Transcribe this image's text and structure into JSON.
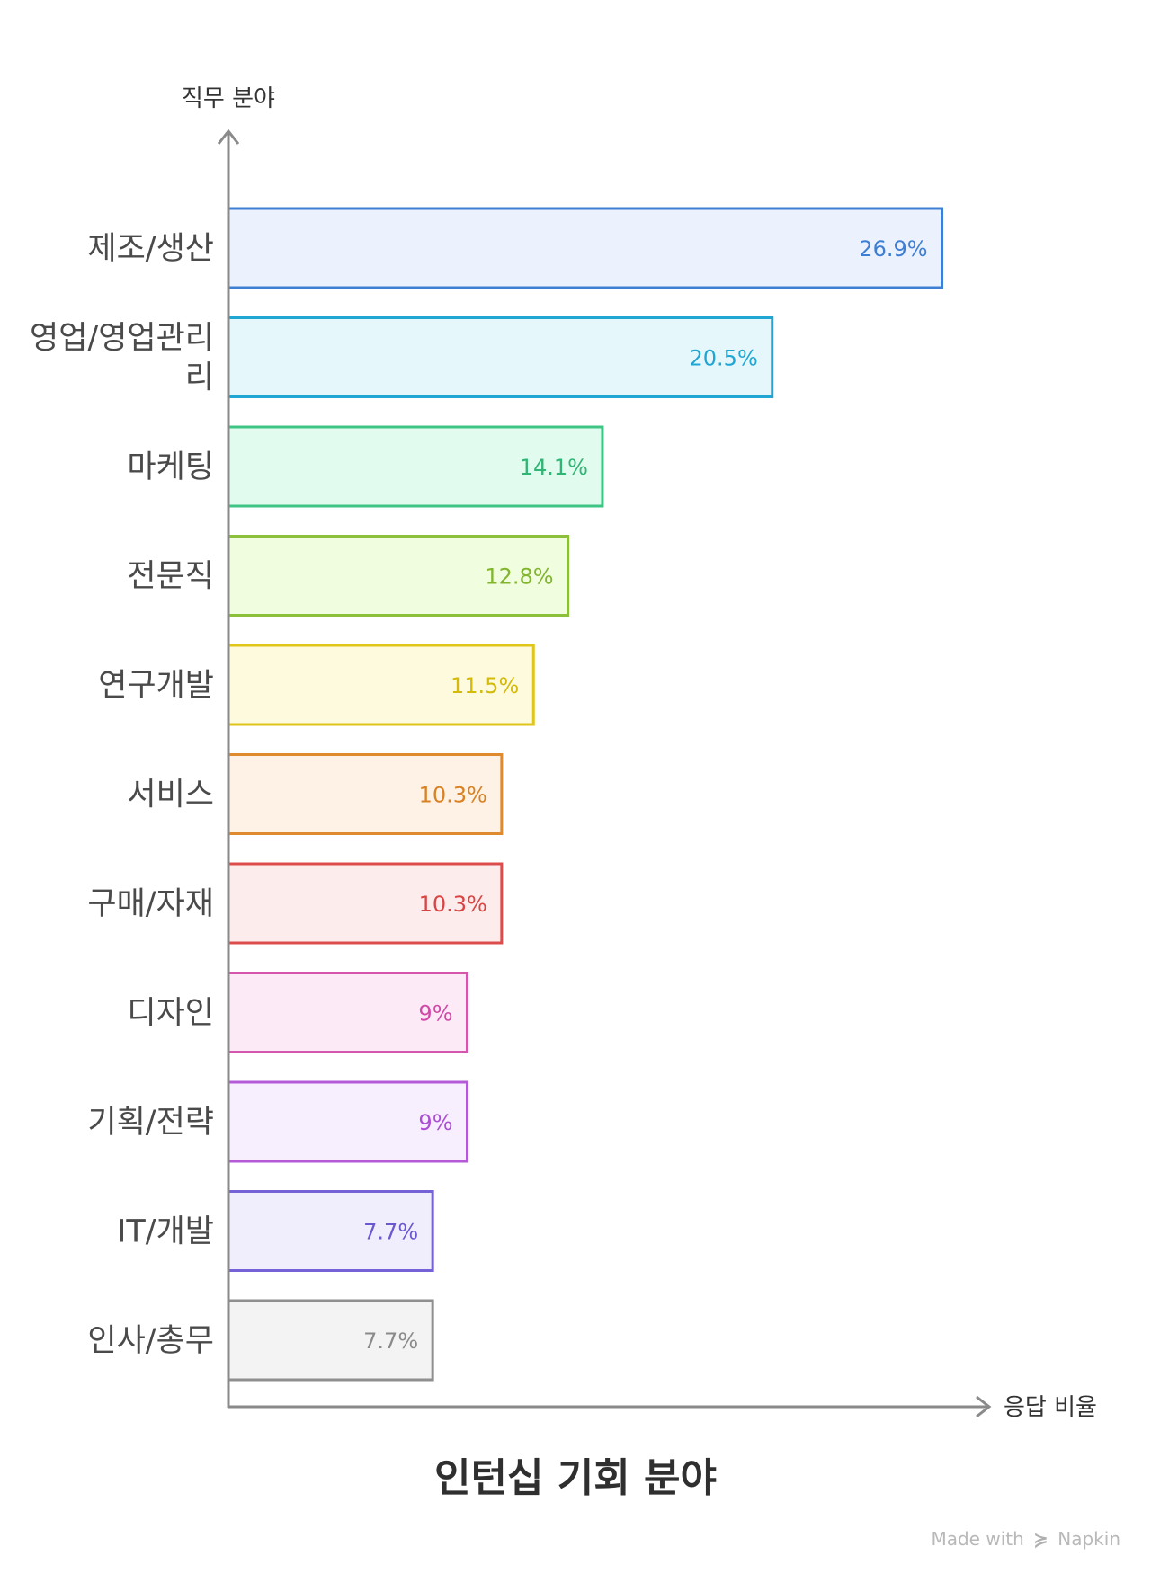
{
  "chart_data": {
    "type": "bar",
    "orientation": "horizontal",
    "title": "인턴십 기회 분야",
    "ylabel": "직무 분야",
    "xlabel": "응답 비율",
    "xlim": [
      0,
      30
    ],
    "grid": false,
    "legend": "none",
    "categories": [
      "제조/생산",
      "영업/영업관리",
      "마케팅",
      "전문직",
      "연구개발",
      "서비스",
      "구매/자재",
      "디자인",
      "기획/전략",
      "IT/개발",
      "인사/총무"
    ],
    "category_lines": [
      [
        "제조/생산"
      ],
      [
        "영업/영업관리",
        "리"
      ],
      [
        "마케팅"
      ],
      [
        "전문직"
      ],
      [
        "연구개발"
      ],
      [
        "서비스"
      ],
      [
        "구매/자재"
      ],
      [
        "디자인"
      ],
      [
        "기획/전략"
      ],
      [
        "IT/개발"
      ],
      [
        "인사/총무"
      ]
    ],
    "values": [
      26.9,
      20.5,
      14.1,
      12.8,
      11.5,
      10.3,
      10.3,
      9,
      9,
      7.7,
      7.7
    ],
    "value_labels": [
      "26.9%",
      "20.5%",
      "14.1%",
      "12.8%",
      "11.5%",
      "10.3%",
      "10.3%",
      "9%",
      "9%",
      "7.7%",
      "7.7%"
    ],
    "colors": [
      {
        "stroke": "#3f7fd3",
        "fill": "#ebf2fd",
        "text": "#3f7fd3"
      },
      {
        "stroke": "#20a6d3",
        "fill": "#e6f7fc",
        "text": "#20a6d3"
      },
      {
        "stroke": "#3ec484",
        "fill": "#e1fbee",
        "text": "#2fb574"
      },
      {
        "stroke": "#8cc03a",
        "fill": "#f1fddf",
        "text": "#82b52e"
      },
      {
        "stroke": "#e0c619",
        "fill": "#fefadd",
        "text": "#d4ba0c"
      },
      {
        "stroke": "#e08a30",
        "fill": "#fef2e6",
        "text": "#d98124"
      },
      {
        "stroke": "#dc4c4c",
        "fill": "#fdecec",
        "text": "#d94444"
      },
      {
        "stroke": "#d456ad",
        "fill": "#fdeaf7",
        "text": "#d04aa7"
      },
      {
        "stroke": "#b45ad9",
        "fill": "#f8effe",
        "text": "#ad4fd4"
      },
      {
        "stroke": "#7462d6",
        "fill": "#f0eefd",
        "text": "#6a58d0"
      },
      {
        "stroke": "#8f8f8f",
        "fill": "#f3f3f3",
        "text": "#8a8a8a"
      }
    ]
  },
  "watermark": {
    "prefix": "Made with",
    "brand": "Napkin"
  }
}
